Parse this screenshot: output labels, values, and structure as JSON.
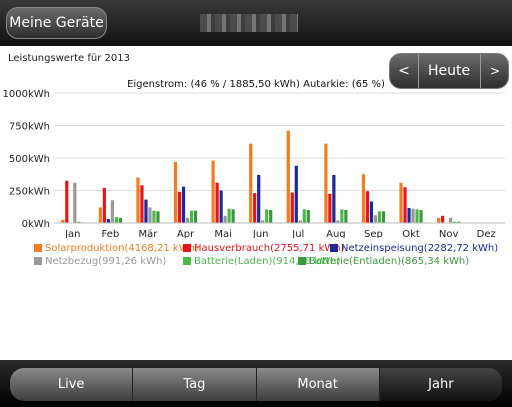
{
  "header": {
    "back_label": "Meine Geräte"
  },
  "period_label": "Leistungswerte für 2013",
  "nav": {
    "prev": "<",
    "today": "Heute",
    "next": ">"
  },
  "summary": "Eigenstrom: (46 % / 1885,50 kWh) Autarkie: (65 %)",
  "colors": {
    "solar": "#f47b20",
    "consumption": "#e8141c",
    "feed_in": "#1a2a9a",
    "grid": "#999999",
    "battery_charge": "#4cb84c",
    "battery_discharge": "#3a9a3a"
  },
  "chart_data": {
    "type": "bar",
    "categories": [
      "Jan",
      "Feb",
      "Mär",
      "Apr",
      "Mai",
      "Jun",
      "Jul",
      "Aug",
      "Sep",
      "Okt",
      "Nov",
      "Dez"
    ],
    "ylim": [
      0,
      1000
    ],
    "yticks": [
      "0kWh",
      "250kWh",
      "500kWh",
      "750kWh",
      "1000kWh"
    ],
    "series": [
      {
        "name": "Solarproduktion(4168,21 kWh)",
        "color": "#f47b20",
        "values": [
          25,
          120,
          350,
          470,
          480,
          610,
          710,
          610,
          375,
          310,
          40,
          0
        ]
      },
      {
        "name": "Hausverbrauch(2755,71 kWh)",
        "color": "#e8141c",
        "values": [
          325,
          270,
          290,
          240,
          310,
          230,
          235,
          225,
          245,
          275,
          55,
          0
        ]
      },
      {
        "name": "Netzeinspeisung(2282,72 kWh)",
        "color": "#1a2a9a",
        "values": [
          0,
          30,
          180,
          280,
          250,
          370,
          440,
          370,
          165,
          115,
          0,
          0
        ]
      },
      {
        "name": "Netzbezug(991,26 kWh)",
        "color": "#999999",
        "values": [
          310,
          175,
          120,
          40,
          55,
          20,
          20,
          20,
          60,
          110,
          40,
          0
        ]
      },
      {
        "name": "Batterie(Laden)(914,28 kWh)",
        "color": "#4cb84c",
        "values": [
          10,
          45,
          95,
          95,
          110,
          105,
          105,
          105,
          90,
          105,
          10,
          0
        ]
      },
      {
        "name": "Batterie(Entladen)(865,34 kWh)",
        "color": "#3a9a3a",
        "values": [
          5,
          40,
          90,
          95,
          105,
          100,
          100,
          100,
          90,
          100,
          10,
          0
        ]
      }
    ]
  },
  "tabs": [
    {
      "label": "Live",
      "active": false
    },
    {
      "label": "Tag",
      "active": false
    },
    {
      "label": "Monat",
      "active": false
    },
    {
      "label": "Jahr",
      "active": true
    }
  ]
}
